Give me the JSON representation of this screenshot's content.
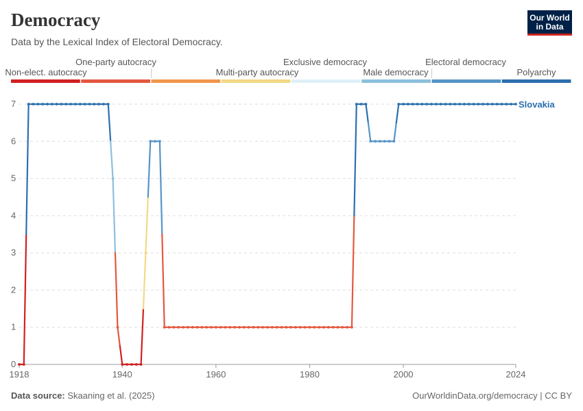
{
  "header": {
    "title": "Democracy",
    "subtitle": "Data by the Lexical Index of Electoral Democracy.",
    "logo_line1": "Our World",
    "logo_line2": "in Data"
  },
  "footer": {
    "source_label": "Data source:",
    "source_text": "Skaaning et al. (2025)",
    "right_text": "OurWorldinData.org/democracy | CC BY"
  },
  "chart_data": {
    "type": "line",
    "title": "Democracy",
    "xlim": [
      1918,
      2024
    ],
    "ylim": [
      0,
      7
    ],
    "x_ticks": [
      1918,
      1940,
      1960,
      1980,
      2000,
      2024
    ],
    "y_ticks": [
      0,
      1,
      2,
      3,
      4,
      5,
      6,
      7
    ],
    "grid": "horizontal dashed",
    "legend_categories": [
      {
        "label": "Non-elect. autocracy",
        "color": "#d02020",
        "value": 0
      },
      {
        "label": "One-party autocracy",
        "color": "#e4573e",
        "value": 1
      },
      {
        "label": "Multi-party autocracy",
        "color": "#f0964a",
        "value": 2
      },
      {
        "label": "Exclusive democracy",
        "color": "#f3d985",
        "value": 3
      },
      {
        "label": "Male democracy",
        "color": "#e0f0f8",
        "value": 4
      },
      {
        "label": "Electoral democracy",
        "color": "#8dbfdc",
        "value": 5
      },
      {
        "label": "Polyarchy",
        "color": "#5494c8",
        "value": 6
      },
      {
        "label": "",
        "color": "#2b6fae",
        "value": 7
      }
    ],
    "series": [
      {
        "name": "Slovakia",
        "color": "#2b6fae",
        "points": [
          [
            1918,
            0
          ],
          [
            1919,
            0
          ],
          [
            1920,
            7
          ],
          [
            1921,
            7
          ],
          [
            1922,
            7
          ],
          [
            1923,
            7
          ],
          [
            1924,
            7
          ],
          [
            1925,
            7
          ],
          [
            1926,
            7
          ],
          [
            1927,
            7
          ],
          [
            1928,
            7
          ],
          [
            1929,
            7
          ],
          [
            1930,
            7
          ],
          [
            1931,
            7
          ],
          [
            1932,
            7
          ],
          [
            1933,
            7
          ],
          [
            1934,
            7
          ],
          [
            1935,
            7
          ],
          [
            1936,
            7
          ],
          [
            1937,
            7
          ],
          [
            1938,
            5
          ],
          [
            1939,
            1
          ],
          [
            1940,
            0
          ],
          [
            1941,
            0
          ],
          [
            1942,
            0
          ],
          [
            1943,
            0
          ],
          [
            1944,
            0
          ],
          [
            1945,
            3
          ],
          [
            1946,
            6
          ],
          [
            1947,
            6
          ],
          [
            1948,
            6
          ],
          [
            1949,
            1
          ],
          [
            1950,
            1
          ],
          [
            1951,
            1
          ],
          [
            1952,
            1
          ],
          [
            1953,
            1
          ],
          [
            1954,
            1
          ],
          [
            1955,
            1
          ],
          [
            1956,
            1
          ],
          [
            1957,
            1
          ],
          [
            1958,
            1
          ],
          [
            1959,
            1
          ],
          [
            1960,
            1
          ],
          [
            1961,
            1
          ],
          [
            1962,
            1
          ],
          [
            1963,
            1
          ],
          [
            1964,
            1
          ],
          [
            1965,
            1
          ],
          [
            1966,
            1
          ],
          [
            1967,
            1
          ],
          [
            1968,
            1
          ],
          [
            1969,
            1
          ],
          [
            1970,
            1
          ],
          [
            1971,
            1
          ],
          [
            1972,
            1
          ],
          [
            1973,
            1
          ],
          [
            1974,
            1
          ],
          [
            1975,
            1
          ],
          [
            1976,
            1
          ],
          [
            1977,
            1
          ],
          [
            1978,
            1
          ],
          [
            1979,
            1
          ],
          [
            1980,
            1
          ],
          [
            1981,
            1
          ],
          [
            1982,
            1
          ],
          [
            1983,
            1
          ],
          [
            1984,
            1
          ],
          [
            1985,
            1
          ],
          [
            1986,
            1
          ],
          [
            1987,
            1
          ],
          [
            1988,
            1
          ],
          [
            1989,
            1
          ],
          [
            1990,
            7
          ],
          [
            1991,
            7
          ],
          [
            1992,
            7
          ],
          [
            1993,
            6
          ],
          [
            1994,
            6
          ],
          [
            1995,
            6
          ],
          [
            1996,
            6
          ],
          [
            1997,
            6
          ],
          [
            1998,
            6
          ],
          [
            1999,
            7
          ],
          [
            2000,
            7
          ],
          [
            2001,
            7
          ],
          [
            2002,
            7
          ],
          [
            2003,
            7
          ],
          [
            2004,
            7
          ],
          [
            2005,
            7
          ],
          [
            2006,
            7
          ],
          [
            2007,
            7
          ],
          [
            2008,
            7
          ],
          [
            2009,
            7
          ],
          [
            2010,
            7
          ],
          [
            2011,
            7
          ],
          [
            2012,
            7
          ],
          [
            2013,
            7
          ],
          [
            2014,
            7
          ],
          [
            2015,
            7
          ],
          [
            2016,
            7
          ],
          [
            2017,
            7
          ],
          [
            2018,
            7
          ],
          [
            2019,
            7
          ],
          [
            2020,
            7
          ],
          [
            2021,
            7
          ],
          [
            2022,
            7
          ],
          [
            2023,
            7
          ],
          [
            2024,
            7
          ]
        ]
      }
    ]
  }
}
